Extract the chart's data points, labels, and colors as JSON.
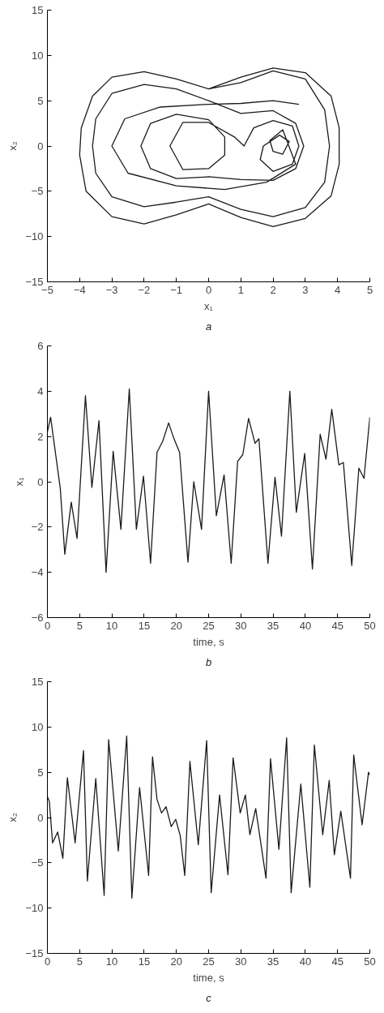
{
  "chart_data": [
    {
      "type": "line",
      "xlabel": "x₁",
      "ylabel": "x₂",
      "annotations": [
        "a"
      ],
      "xlim": [
        -5,
        5
      ],
      "ylim": [
        -15,
        15
      ],
      "xticks": [
        -5,
        -4,
        -3,
        -2,
        -1,
        0,
        1,
        2,
        3,
        4,
        5
      ],
      "yticks": [
        -15,
        -10,
        -5,
        0,
        5,
        10,
        15
      ],
      "grid": false,
      "series": [
        {
          "color": "#1a1a1a",
          "x": [
            0,
            1,
            2,
            3,
            3.8,
            4.05,
            4.05,
            3.8,
            3,
            2,
            1,
            0,
            -1,
            -2,
            -3,
            -3.8,
            -4,
            -3.95,
            -3.6,
            -3,
            -2,
            -1,
            0,
            1,
            2,
            3,
            3.6,
            3.75,
            3.6,
            3,
            2,
            1,
            0,
            -1,
            -2,
            -3,
            -3.5,
            -3.6,
            -3.5,
            -3,
            -2,
            -1,
            0,
            1,
            2,
            2.7,
            2.95,
            2.7,
            2,
            1,
            0,
            -1,
            -1.8,
            -2.1,
            -1.8,
            -1,
            0,
            0.5,
            0.5,
            0,
            -0.8,
            -1.2,
            -0.8,
            0,
            0.8,
            1.1,
            1.4,
            2,
            2.6,
            2.8,
            2.6,
            2,
            1.6,
            1.7,
            2.2,
            2.5,
            2.3,
            2,
            1.9,
            2.3,
            2.7,
            1.8,
            0.5,
            -1,
            -2.5,
            -3,
            -2.6,
            -1.5,
            0,
            1,
            2,
            2.8
          ],
          "values": [
            6.3,
            7.6,
            8.6,
            8.1,
            5.5,
            2,
            -2,
            -5.5,
            -8,
            -8.9,
            -7.9,
            -6.4,
            -7.6,
            -8.6,
            -7.8,
            -5,
            -1,
            2,
            5.5,
            7.6,
            8.2,
            7.4,
            6.3,
            7,
            8.3,
            7.4,
            4,
            0,
            -4,
            -6.8,
            -7.8,
            -7,
            -5.6,
            -6.2,
            -6.7,
            -5.6,
            -3,
            0,
            3,
            5.8,
            6.8,
            6.3,
            5,
            3.6,
            3.9,
            2.5,
            0,
            -2.5,
            -3.8,
            -3.7,
            -3.4,
            -3.6,
            -2.5,
            0,
            2.5,
            3.5,
            2.9,
            1,
            -1,
            -2.5,
            -2.6,
            0,
            2.6,
            2.6,
            1,
            0,
            2,
            2.8,
            2.2,
            0,
            -2,
            -2.8,
            -1.5,
            0,
            1.2,
            0.5,
            -0.9,
            -0.6,
            0.6,
            1.8,
            -2,
            -4,
            -4.8,
            -4.4,
            -3,
            0,
            3,
            4.3,
            4.6,
            4.7,
            5,
            4.6
          ]
        }
      ]
    },
    {
      "type": "line",
      "xlabel": "time, s",
      "ylabel": "x₁",
      "annotations": [
        "b"
      ],
      "xlim": [
        0,
        50
      ],
      "ylim": [
        -6,
        6
      ],
      "xticks": [
        0,
        5,
        10,
        15,
        20,
        25,
        30,
        35,
        40,
        45,
        50
      ],
      "yticks": [
        -6,
        -4,
        -2,
        0,
        2,
        4,
        6
      ],
      "grid": false,
      "series": [
        {
          "color": "#1a1a1a",
          "x": [
            0,
            0.5,
            2,
            2.7,
            3.7,
            4.6,
            5.9,
            6.9,
            8.0,
            9.1,
            10.2,
            11.4,
            12.7,
            13.8,
            14.9,
            16.0,
            17.0,
            17.9,
            18.8,
            19.5,
            20.5,
            21.8,
            22.7,
            23.9,
            25.0,
            26.2,
            27.4,
            28.5,
            29.5,
            30.3,
            31.2,
            32.2,
            32.8,
            34.2,
            35.3,
            36.3,
            37.6,
            38.6,
            39.9,
            41.1,
            42.3,
            43.2,
            44.1,
            45.2,
            45.9,
            47.2,
            48.3,
            49.1,
            50
          ],
          "values": [
            2.2,
            2.85,
            -0.3,
            -3.2,
            -0.9,
            -2.5,
            3.8,
            -0.25,
            2.7,
            -4.0,
            1.35,
            -2.1,
            4.1,
            -2.1,
            0.25,
            -3.6,
            1.3,
            1.8,
            2.6,
            2.0,
            1.3,
            -3.55,
            0,
            -2.1,
            4.0,
            -1.5,
            0.3,
            -3.6,
            0.9,
            1.2,
            2.8,
            1.7,
            1.9,
            -3.6,
            0.2,
            -2.4,
            4.0,
            -1.35,
            1.25,
            -3.85,
            2.1,
            1.0,
            3.2,
            0.75,
            0.85,
            -3.7,
            0.6,
            0.15,
            2.85
          ]
        }
      ]
    },
    {
      "type": "line",
      "xlabel": "time, s",
      "ylabel": "x₂",
      "annotations": [
        "c"
      ],
      "xlim": [
        0,
        50
      ],
      "ylim": [
        -15,
        15
      ],
      "xticks": [
        0,
        5,
        10,
        15,
        20,
        25,
        30,
        35,
        40,
        45,
        50
      ],
      "yticks": [
        -15,
        -10,
        -5,
        0,
        5,
        10,
        15
      ],
      "grid": false,
      "series": [
        {
          "color": "#1a1a1a",
          "x": [
            0,
            0.3,
            0.8,
            1.6,
            2.4,
            3.1,
            4.3,
            5.6,
            6.2,
            7.5,
            8.8,
            9.5,
            11.0,
            12.3,
            13.1,
            14.3,
            15.7,
            16.3,
            17.0,
            17.7,
            18.4,
            19.2,
            19.9,
            20.6,
            21.3,
            22.1,
            23.4,
            24.7,
            25.4,
            26.7,
            28.0,
            28.8,
            29.9,
            30.7,
            31.4,
            32.3,
            33.9,
            34.6,
            35.9,
            37.1,
            37.8,
            39.3,
            40.7,
            41.4,
            42.7,
            43.7,
            44.5,
            45.5,
            47.0,
            47.5,
            48.8,
            49.8,
            50
          ],
          "values": [
            2.3,
            1.8,
            -2.8,
            -1.6,
            -4.5,
            4.4,
            -2.8,
            7.4,
            -7.0,
            4.3,
            -8.6,
            8.6,
            -3.7,
            9.0,
            -8.9,
            3.3,
            -6.4,
            6.7,
            2.0,
            0.5,
            1.2,
            -1.0,
            -0.2,
            -2.0,
            -6.4,
            6.2,
            -3.0,
            8.5,
            -8.3,
            2.5,
            -6.3,
            6.6,
            0.5,
            2.5,
            -1.9,
            1.0,
            -6.7,
            6.5,
            -3.5,
            8.8,
            -8.3,
            3.7,
            -7.7,
            8.0,
            -1.9,
            4.1,
            -4.1,
            0.7,
            -6.7,
            6.9,
            -0.8,
            5.0,
            4.7
          ]
        }
      ]
    }
  ]
}
